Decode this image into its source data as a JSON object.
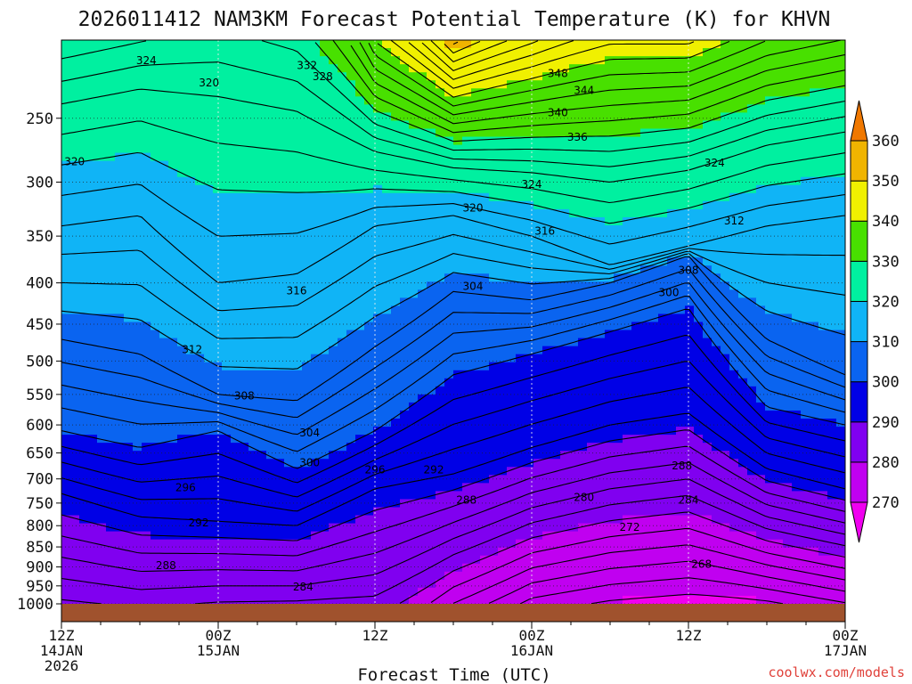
{
  "chart_data": {
    "type": "heatmap",
    "title": "2026011412 NAM3KM Forecast Potential Temperature (K) for KHVN",
    "xlabel": "Forecast Time (UTC)",
    "ylabel": "",
    "y_scale": "log",
    "y_reversed": true,
    "ylim": [
      1000,
      200
    ],
    "y_ticks": [
      250,
      300,
      350,
      400,
      450,
      500,
      550,
      600,
      650,
      700,
      750,
      800,
      850,
      900,
      950,
      1000
    ],
    "x_ticks": [
      {
        "hour": 0,
        "line1": "12Z",
        "line2": "14JAN",
        "line3": "2026"
      },
      {
        "hour": 12,
        "line1": "00Z",
        "line2": "15JAN",
        "line3": ""
      },
      {
        "hour": 24,
        "line1": "12Z",
        "line2": "",
        "line3": ""
      },
      {
        "hour": 36,
        "line1": "00Z",
        "line2": "16JAN",
        "line3": ""
      },
      {
        "hour": 48,
        "line1": "12Z",
        "line2": "",
        "line3": ""
      },
      {
        "hour": 60,
        "line1": "00Z",
        "line2": "17JAN",
        "line3": ""
      }
    ],
    "xlim": [
      0,
      60
    ],
    "grid": true,
    "colorbar": {
      "levels": [
        270,
        280,
        290,
        300,
        310,
        320,
        330,
        340,
        350,
        360
      ],
      "colors": [
        "#f000f0",
        "#c000f0",
        "#8000f0",
        "#0000e6",
        "#0a64f0",
        "#10b4f6",
        "#00f0a0",
        "#48e000",
        "#f0f000",
        "#f0b400",
        "#f07800"
      ]
    },
    "fill_bands": [
      270,
      280,
      290,
      300,
      310,
      320,
      330,
      340,
      350,
      360
    ],
    "contour_interval": 2,
    "series": [
      {
        "name": "324",
        "x": [
          0,
          6,
          12,
          18,
          24,
          30,
          36,
          42,
          48,
          54,
          60
        ],
        "y": [
          240,
          230,
          235,
          245,
          275,
          288,
          292,
          300,
          290,
          270,
          260
        ]
      },
      {
        "name": "316",
        "x": [
          0,
          6,
          12,
          18,
          24,
          30,
          36,
          42,
          48,
          54,
          60
        ],
        "y": [
          340,
          330,
          400,
          390,
          340,
          330,
          350,
          380,
          360,
          340,
          330
        ]
      },
      {
        "name": "308",
        "x": [
          0,
          6,
          12,
          18,
          24,
          30,
          36,
          42,
          48,
          54,
          60
        ],
        "y": [
          470,
          490,
          550,
          560,
          480,
          410,
          420,
          400,
          370,
          470,
          520
        ]
      },
      {
        "name": "300",
        "x": [
          0,
          6,
          12,
          18,
          24,
          30,
          36,
          42,
          48,
          54,
          60
        ],
        "y": [
          610,
          640,
          610,
          680,
          610,
          520,
          490,
          460,
          430,
          570,
          600
        ]
      },
      {
        "name": "292",
        "x": [
          0,
          6,
          12,
          18,
          24,
          30,
          36,
          42,
          48,
          54,
          60
        ],
        "y": [
          730,
          780,
          790,
          800,
          720,
          690,
          640,
          600,
          580,
          680,
          720
        ]
      },
      {
        "name": "284",
        "x": [
          0,
          6,
          12,
          18,
          24,
          30,
          36,
          42,
          48,
          54,
          60
        ],
        "y": [
          930,
          960,
          950,
          950,
          920,
          830,
          760,
          720,
          700,
          780,
          820
        ]
      }
    ],
    "contour_labels": [
      {
        "value": "324",
        "hour": 6.5,
        "p": 212
      },
      {
        "value": "332",
        "hour": 18.8,
        "p": 215
      },
      {
        "value": "328",
        "hour": 20.0,
        "p": 222
      },
      {
        "value": "320",
        "hour": 11.3,
        "p": 226
      },
      {
        "value": "320",
        "hour": 1.0,
        "p": 283
      },
      {
        "value": "348",
        "hour": 38.0,
        "p": 220
      },
      {
        "value": "344",
        "hour": 40.0,
        "p": 231
      },
      {
        "value": "340",
        "hour": 38.0,
        "p": 246
      },
      {
        "value": "336",
        "hour": 39.5,
        "p": 264
      },
      {
        "value": "324",
        "hour": 50.0,
        "p": 284
      },
      {
        "value": "324",
        "hour": 36.0,
        "p": 302
      },
      {
        "value": "320",
        "hour": 31.5,
        "p": 323
      },
      {
        "value": "316",
        "hour": 37.0,
        "p": 345
      },
      {
        "value": "312",
        "hour": 51.5,
        "p": 335
      },
      {
        "value": "308",
        "hour": 48.0,
        "p": 386
      },
      {
        "value": "316",
        "hour": 18.0,
        "p": 409
      },
      {
        "value": "304",
        "hour": 31.5,
        "p": 404
      },
      {
        "value": "300",
        "hour": 46.5,
        "p": 411
      },
      {
        "value": "312",
        "hour": 10.0,
        "p": 484
      },
      {
        "value": "308",
        "hour": 14.0,
        "p": 552
      },
      {
        "value": "304",
        "hour": 19.0,
        "p": 614
      },
      {
        "value": "300",
        "hour": 19.0,
        "p": 668
      },
      {
        "value": "296",
        "hour": 9.5,
        "p": 718
      },
      {
        "value": "296",
        "hour": 24.0,
        "p": 682
      },
      {
        "value": "292",
        "hour": 28.5,
        "p": 682
      },
      {
        "value": "292",
        "hour": 10.5,
        "p": 793
      },
      {
        "value": "288",
        "hour": 31.0,
        "p": 744
      },
      {
        "value": "288",
        "hour": 47.5,
        "p": 674
      },
      {
        "value": "284",
        "hour": 48.0,
        "p": 744
      },
      {
        "value": "280",
        "hour": 40.0,
        "p": 738
      },
      {
        "value": "272",
        "hour": 43.5,
        "p": 804
      },
      {
        "value": "268",
        "hour": 49.0,
        "p": 893
      },
      {
        "value": "288",
        "hour": 8.0,
        "p": 896
      },
      {
        "value": "284",
        "hour": 18.5,
        "p": 953
      }
    ]
  },
  "credit": "coolwx.com/models"
}
